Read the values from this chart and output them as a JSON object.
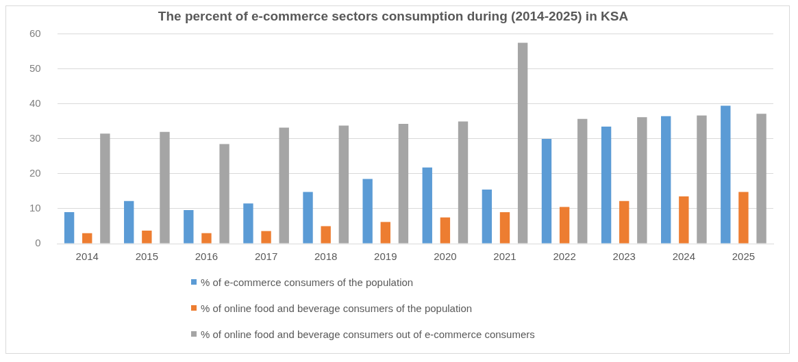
{
  "chart_data": {
    "type": "bar",
    "title": "The percent of e-commerce sectors consumption during (2014-2025) in KSA",
    "categories": [
      "2014",
      "2015",
      "2016",
      "2017",
      "2018",
      "2019",
      "2020",
      "2021",
      "2022",
      "2023",
      "2024",
      "2025"
    ],
    "series": [
      {
        "name": "% of e-commerce consumers of the population",
        "color": "#5b9bd5",
        "values": [
          9,
          12.2,
          9.6,
          11.5,
          14.8,
          18.5,
          21.8,
          15.5,
          30,
          33.5,
          36.5,
          39.5
        ]
      },
      {
        "name": "% of online food and beverage consumers of the population",
        "color": "#ed7d31",
        "values": [
          3,
          3.7,
          3,
          3.6,
          5,
          6.2,
          7.5,
          9,
          10.5,
          12.2,
          13.5,
          14.8
        ]
      },
      {
        "name": "% of online food and beverage consumers out of e-commerce consumers",
        "color": "#a5a5a5",
        "values": [
          31.5,
          32,
          28.5,
          33.2,
          33.8,
          34.3,
          35,
          57.5,
          35.7,
          36.2,
          36.7,
          37.2
        ]
      }
    ],
    "ylim": [
      0,
      60
    ],
    "yticks": [
      0,
      10,
      20,
      30,
      40,
      50,
      60
    ],
    "grid": "y",
    "legend": "bottom"
  }
}
